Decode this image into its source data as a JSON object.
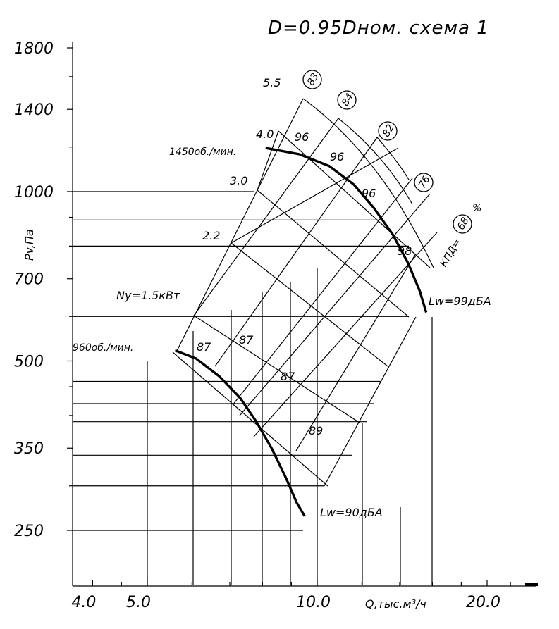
{
  "chart_data": {
    "type": "line",
    "title": "D=0.95Dном. схема 1",
    "xlabel": "Q,тыс.м³/ч",
    "ylabel": "Pv,Па",
    "x_scale": "log",
    "y_scale": "log",
    "xlim": [
      3.5,
      23.5
    ],
    "ylim": [
      200,
      1900
    ],
    "x_ticks": [
      4.0,
      5.0,
      10.0,
      20.0
    ],
    "x_tick_labels": [
      "4.0",
      "5.0",
      "10.0",
      "20.0"
    ],
    "y_ticks": [
      250,
      350,
      500,
      700,
      1000,
      1400,
      1800
    ],
    "y_tick_labels": [
      "250",
      "350",
      "500",
      "700",
      "1000",
      "1400",
      "1800"
    ],
    "grid": false,
    "series": [
      {
        "name": "1450об./мин.",
        "x": [
          8.1,
          9.3,
          10.5,
          11.6,
          12.6,
          13.6,
          14.5,
          15.2,
          15.6
        ],
        "y": [
          1195,
          1165,
          1110,
          1030,
          935,
          840,
          745,
          665,
          610
        ]
      },
      {
        "name": "960об./мин.",
        "x": [
          5.6,
          6.1,
          6.7,
          7.3,
          7.8,
          8.3,
          8.8,
          9.2,
          9.5
        ],
        "y": [
          522,
          505,
          470,
          430,
          390,
          350,
          310,
          280,
          265
        ]
      }
    ],
    "power_labels": [
      "Ny=1.5кВт",
      "2.2",
      "3.0",
      "4.0",
      "5.5"
    ],
    "efficiency_circles": [
      "83",
      "84",
      "82",
      "76",
      "68"
    ],
    "efficiency_prefix": "КПД=",
    "efficiency_suffix": "%",
    "sound_labels": [
      "Lw=99дБА",
      "Lw=90дБА"
    ],
    "region_values": [
      "96",
      "96",
      "96",
      "98",
      "87",
      "87",
      "87",
      "89"
    ]
  }
}
